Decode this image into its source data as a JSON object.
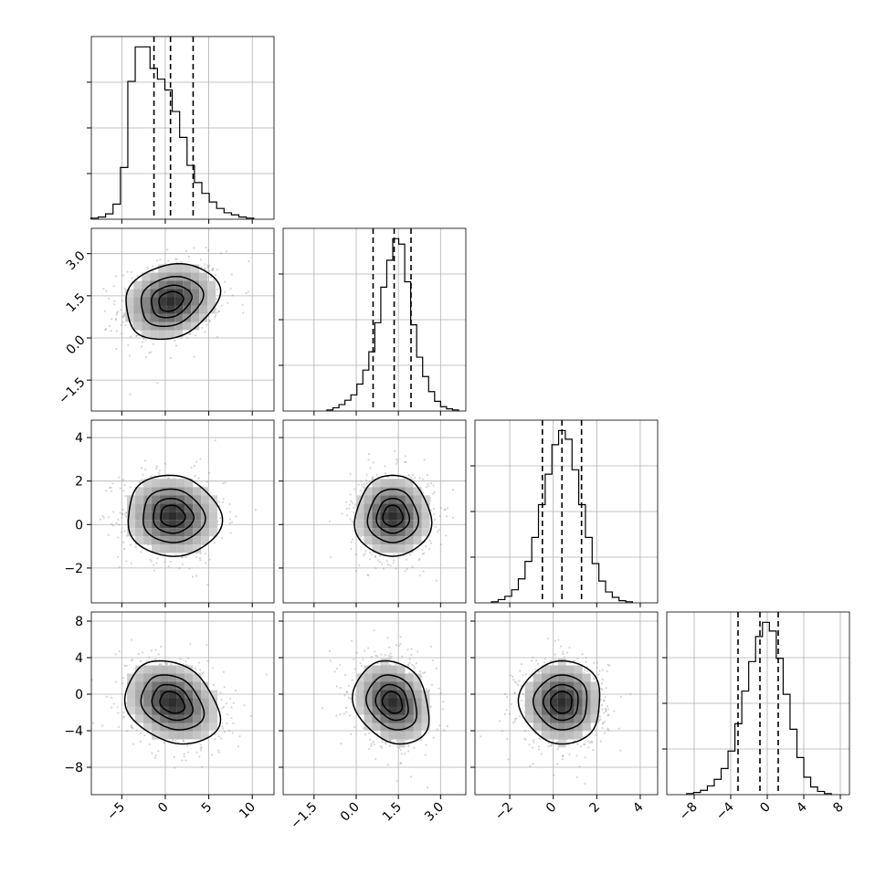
{
  "chart_data": {
    "type": "corner",
    "title": "",
    "n_params": 4,
    "params": [
      {
        "range": [
          -8.5,
          12.5
        ],
        "ticks": [
          -5,
          0,
          5,
          10
        ],
        "tick_labels": [
          "−5",
          "0",
          "5",
          "10"
        ],
        "quantiles": [
          -1.3,
          0.6,
          3.2
        ],
        "mean": 0.8,
        "sd": 2.6
      },
      {
        "range": [
          -2.6,
          3.9
        ],
        "ticks": [
          -1.5,
          0.0,
          1.5,
          3.0
        ],
        "tick_labels": [
          "−1.5",
          "0.0",
          "1.5",
          "3.0"
        ],
        "quantiles": [
          0.6,
          1.35,
          1.95
        ],
        "mean": 1.3,
        "sd": 0.65
      },
      {
        "range": [
          -3.6,
          4.8
        ],
        "ticks": [
          -2,
          0,
          2,
          4
        ],
        "tick_labels": [
          "−2",
          "0",
          "2",
          "4"
        ],
        "quantiles": [
          -0.5,
          0.4,
          1.3
        ],
        "mean": 0.4,
        "sd": 0.9
      },
      {
        "range": [
          -11,
          9
        ],
        "ticks": [
          -8,
          -4,
          0,
          4,
          8
        ],
        "tick_labels": [
          "−8",
          "−4",
          "0",
          "4",
          "8"
        ],
        "quantiles": [
          -3.2,
          -0.8,
          1.2
        ],
        "mean": -0.9,
        "sd": 2.2
      }
    ],
    "histograms": [
      {
        "param": 0,
        "counts": [
          1,
          2,
          5,
          14,
          48,
          128,
          160,
          160,
          140,
          130,
          120,
          100,
          76,
          50,
          34,
          24,
          16,
          10,
          6,
          4,
          2,
          1
        ]
      },
      {
        "param": 1,
        "counts": [
          1,
          3,
          6,
          10,
          15,
          25,
          38,
          55,
          82,
          115,
          140,
          160,
          155,
          120,
          80,
          50,
          32,
          18,
          9,
          4,
          2,
          1
        ]
      },
      {
        "param": 2,
        "counts": [
          1,
          3,
          6,
          12,
          22,
          38,
          60,
          90,
          118,
          145,
          158,
          150,
          122,
          90,
          60,
          36,
          20,
          10,
          5,
          2,
          1
        ]
      },
      {
        "param": 3,
        "counts": [
          1,
          2,
          4,
          8,
          14,
          24,
          40,
          65,
          95,
          122,
          145,
          158,
          150,
          125,
          92,
          60,
          34,
          16,
          7,
          3,
          1
        ]
      }
    ],
    "joint": [
      {
        "row": 1,
        "col": 0,
        "corr": 0.2,
        "center": [
          0.6,
          1.3
        ]
      },
      {
        "row": 2,
        "col": 0,
        "corr": -0.05,
        "center": [
          0.8,
          0.4
        ]
      },
      {
        "row": 2,
        "col": 1,
        "corr": 0.0,
        "center": [
          1.3,
          0.4
        ]
      },
      {
        "row": 3,
        "col": 0,
        "corr": -0.25,
        "center": [
          0.8,
          -0.9
        ]
      },
      {
        "row": 3,
        "col": 1,
        "corr": -0.2,
        "center": [
          1.3,
          -0.9
        ]
      },
      {
        "row": 3,
        "col": 2,
        "corr": 0.0,
        "center": [
          0.4,
          -0.9
        ]
      }
    ],
    "contour_levels_sigma": [
      0.5,
      1.0,
      1.5,
      2.0
    ],
    "grid": true,
    "xlabels": [
      "",
      "",
      "",
      ""
    ],
    "ylabels": [
      "",
      "",
      "",
      ""
    ]
  }
}
